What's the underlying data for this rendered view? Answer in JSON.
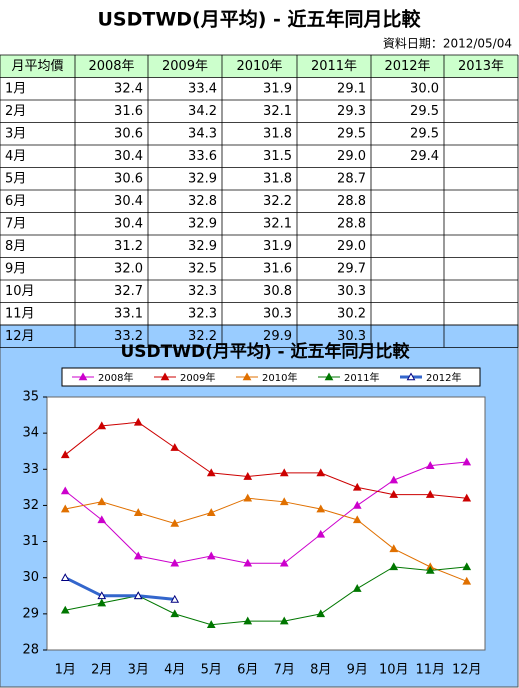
{
  "header": {
    "title": "USDTWD(月平均) - 近五年同月比較",
    "note": "資料日期：2012/05/04"
  },
  "table": {
    "columns": [
      "月平均價",
      "2008年",
      "2009年",
      "2010年",
      "2011年",
      "2012年",
      "2013年"
    ],
    "rows": [
      [
        "1月",
        "32.4",
        "33.4",
        "31.9",
        "29.1",
        "30.0"
      ],
      [
        "2月",
        "31.6",
        "34.2",
        "32.1",
        "29.3",
        "29.5"
      ],
      [
        "3月",
        "30.6",
        "34.3",
        "31.8",
        "29.5",
        "29.5"
      ],
      [
        "4月",
        "30.4",
        "33.6",
        "31.5",
        "29.0",
        "29.4"
      ],
      [
        "5月",
        "30.6",
        "32.9",
        "31.8",
        "28.7"
      ],
      [
        "6月",
        "30.4",
        "32.8",
        "32.2",
        "28.8"
      ],
      [
        "7月",
        "30.4",
        "32.9",
        "32.1",
        "28.8"
      ],
      [
        "8月",
        "31.2",
        "32.9",
        "31.9",
        "29.0"
      ],
      [
        "9月",
        "32.0",
        "32.5",
        "31.6",
        "29.7"
      ],
      [
        "10月",
        "32.7",
        "32.3",
        "30.8",
        "30.3"
      ],
      [
        "11月",
        "33.1",
        "32.3",
        "30.3",
        "30.2"
      ],
      [
        "12月",
        "33.2",
        "32.2",
        "29.9",
        "30.3"
      ]
    ]
  },
  "chart_data": {
    "type": "line",
    "title": "USDTWD(月平均) - 近五年同月比較",
    "categories": [
      "1月",
      "2月",
      "3月",
      "4月",
      "5月",
      "6月",
      "7月",
      "8月",
      "9月",
      "10月",
      "11月",
      "12月"
    ],
    "series": [
      {
        "name": "2008年",
        "color": "#cc00cc",
        "values": [
          32.4,
          31.6,
          30.6,
          30.4,
          30.6,
          30.4,
          30.4,
          31.2,
          32.0,
          32.7,
          33.1,
          33.2
        ]
      },
      {
        "name": "2009年",
        "color": "#cc0000",
        "values": [
          33.4,
          34.2,
          34.3,
          33.6,
          32.9,
          32.8,
          32.9,
          32.9,
          32.5,
          32.3,
          32.3,
          32.2
        ]
      },
      {
        "name": "2010年",
        "color": "#e07000",
        "values": [
          31.9,
          32.1,
          31.8,
          31.5,
          31.8,
          32.2,
          32.1,
          31.9,
          31.6,
          30.8,
          30.3,
          29.9
        ]
      },
      {
        "name": "2011年",
        "color": "#007700",
        "values": [
          29.1,
          29.3,
          29.5,
          29.0,
          28.7,
          28.8,
          28.8,
          29.0,
          29.7,
          30.3,
          30.2,
          30.3
        ]
      },
      {
        "name": "2012年",
        "color": "#3366cc",
        "values": [
          30.0,
          29.5,
          29.5,
          29.4,
          null,
          null,
          null,
          null,
          null,
          null,
          null,
          null
        ]
      }
    ],
    "ylim": [
      28,
      35
    ],
    "yticks": [
      28,
      29,
      30,
      31,
      32,
      33,
      34,
      35
    ]
  }
}
